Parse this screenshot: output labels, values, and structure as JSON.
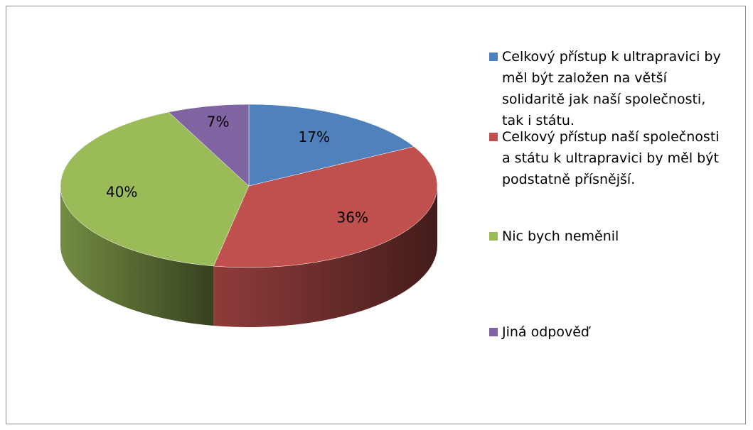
{
  "chart_data": {
    "type": "pie",
    "categories": [
      "Celkový přístup k ultrapravici by měl být založen na větší solidaritě jak naší společnosti, tak i státu.",
      "Celkový přístup naší společnosti a státu k ultrapravici by měl být podstatně přísnější.",
      "Nic bych neměnil",
      "Jiná odpověď"
    ],
    "values": [
      17,
      36,
      40,
      7
    ],
    "value_labels": [
      "17%",
      "36%",
      "40%",
      "7%"
    ],
    "colors": [
      "#4f81bd",
      "#c0504d",
      "#9bbb59",
      "#8064a2"
    ]
  }
}
